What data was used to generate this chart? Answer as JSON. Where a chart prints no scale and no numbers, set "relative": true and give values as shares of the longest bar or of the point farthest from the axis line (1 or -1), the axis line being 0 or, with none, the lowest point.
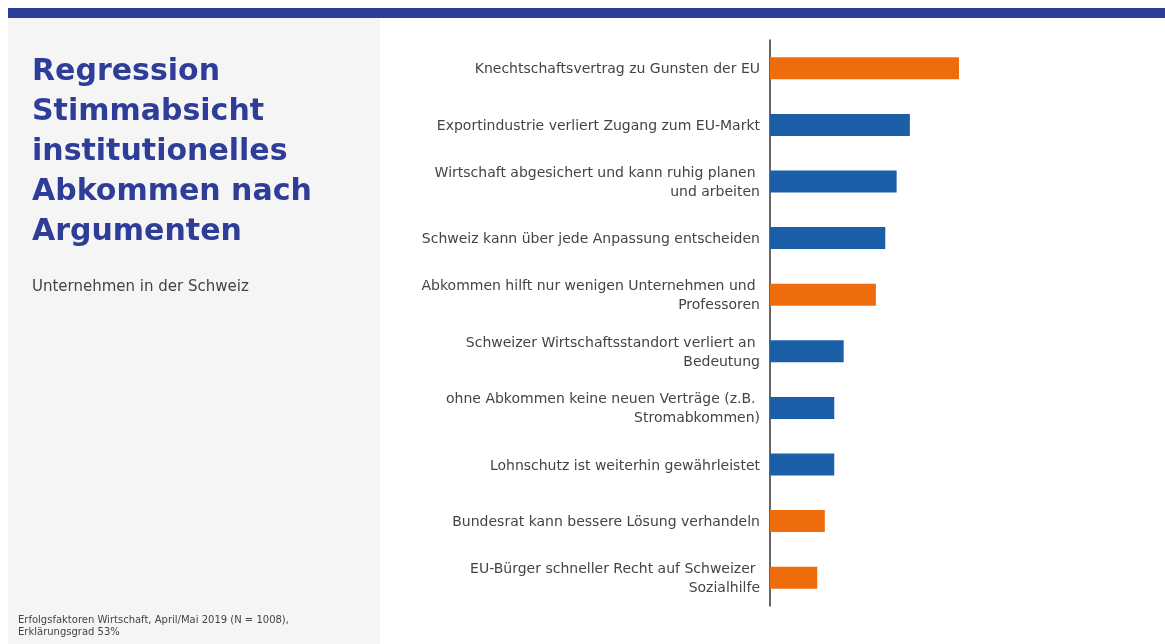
{
  "chart_data": {
    "type": "bar",
    "orientation": "horizontal",
    "relative": true,
    "title": "Regression Stimmabsicht institutionelles Abkommen nach Argumenten",
    "subtitle": "Unternehmen in der Schweiz",
    "annotations": [
      "Erfolgsfaktoren Wirtschaft, April/Mai 2019 (N = 1008), Erklärungsgrad 53%"
    ],
    "categories": [
      "Knechtschaftsvertrag zu Gunsten der EU",
      "Exportindustrie verliert Zugang zum EU-Markt",
      "Wirtschaft abgesichert und kann ruhig planen und arbeiten",
      "Schweiz kann über jede Anpassung entscheiden",
      "Abkommen hilft nur wenigen Unternehmen und Professoren",
      "Schweizer Wirtschaftsstandort verliert an Bedeutung",
      "ohne Abkommen keine neuen Verträge (z.B. Stromabkommen)",
      "Lohnschutz ist weiterhin gewährleistet",
      "Bundesrat kann bessere Lösung verhandeln",
      "EU-Bürger schneller Recht auf Schweizer Sozialhilfe"
    ],
    "values": [
      1,
      0.74,
      0.67,
      0.61,
      0.56,
      0.39,
      0.34,
      0.34,
      0.29,
      0.25
    ],
    "colors": [
      "#ee6c0c",
      "#1b5fa8",
      "#1b5fa8",
      "#1b5fa8",
      "#ee6c0c",
      "#1b5fa8",
      "#1b5fa8",
      "#1b5fa8",
      "#ee6c0c",
      "#ee6c0c"
    ]
  }
}
